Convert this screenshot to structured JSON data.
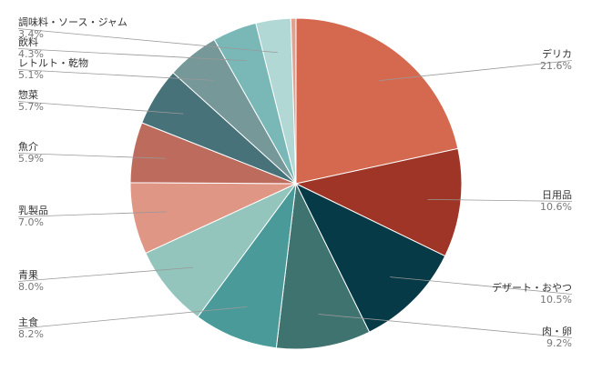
{
  "chart_data": {
    "type": "pie",
    "categories": [
      "デリカ",
      "日用品",
      "デザート・おやつ",
      "肉・卵",
      "主食",
      "青果",
      "乳製品",
      "魚介",
      "惣菜",
      "レトルト・乾物",
      "飲料",
      "調味料・ソース・ジャム",
      null
    ],
    "values": [
      21.6,
      10.6,
      10.5,
      9.2,
      8.2,
      8.0,
      7.0,
      5.9,
      5.7,
      5.1,
      4.3,
      3.4,
      0.5
    ],
    "value_labels": [
      "21.6%",
      "10.6%",
      "10.5%",
      "9.2%",
      "8.2%",
      "8.0%",
      "7.0%",
      "5.9%",
      "5.7%",
      "5.1%",
      "4.3%",
      "3.4%",
      null
    ],
    "colors": [
      "#d4694f",
      "#9e3526",
      "#063a47",
      "#3f7370",
      "#4a9a9a",
      "#93c5bd",
      "#e09684",
      "#bd6b5d",
      "#47727a",
      "#769898",
      "#7ab8b8",
      "#b2d8d6",
      "#e3a08f"
    ]
  }
}
